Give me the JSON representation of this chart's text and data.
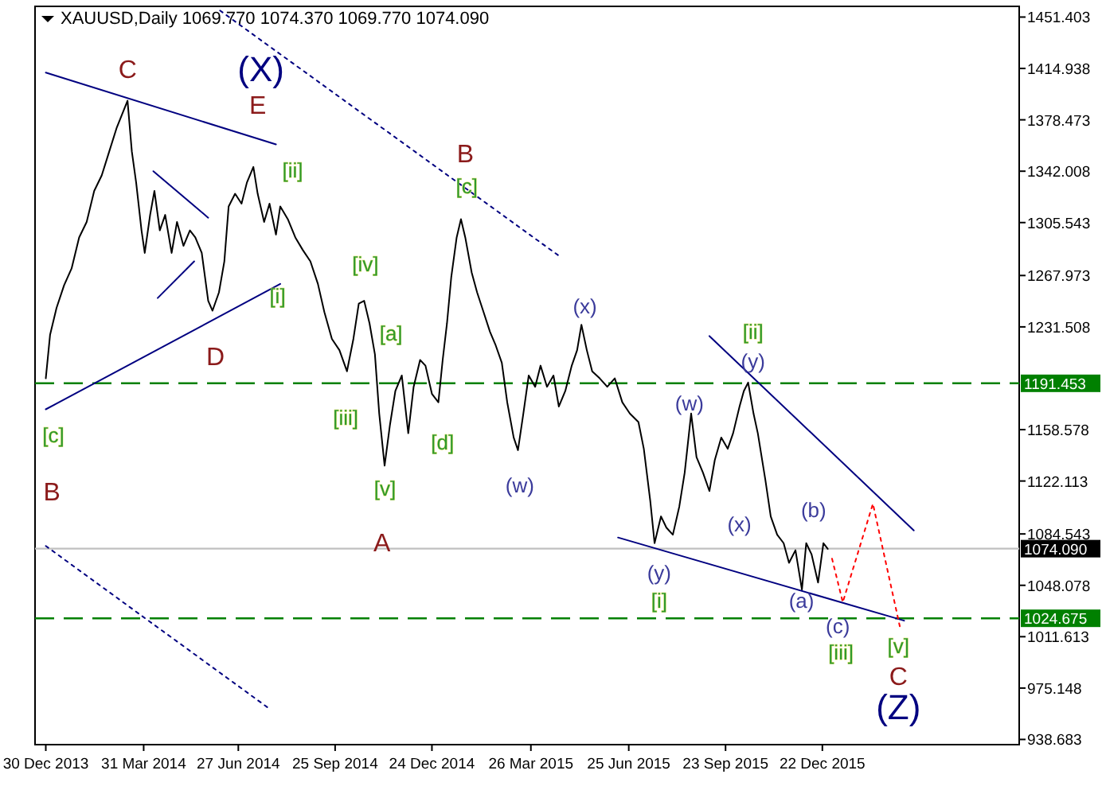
{
  "chart_data": {
    "type": "line",
    "title": "XAUUSD,Daily 1069.770 1074.370 1069.770 1074.090",
    "xlim": [
      "2013-12-20",
      "2016-06-22"
    ],
    "ylim": [
      935,
      1459
    ],
    "xticks": [
      {
        "value": "2013-12-30",
        "label": "30 Dec 2013"
      },
      {
        "value": "2014-03-31",
        "label": "31 Mar 2014"
      },
      {
        "value": "2014-06-27",
        "label": "27 Jun 2014"
      },
      {
        "value": "2014-09-25",
        "label": "25 Sep 2014"
      },
      {
        "value": "2014-12-24",
        "label": "24 Dec 2014"
      },
      {
        "value": "2015-03-26",
        "label": "26 Mar 2015"
      },
      {
        "value": "2015-06-25",
        "label": "25 Jun 2015"
      },
      {
        "value": "2015-09-23",
        "label": "23 Sep 2015"
      },
      {
        "value": "2015-12-22",
        "label": "22 Dec 2015"
      }
    ],
    "yticks": [
      938.683,
      975.148,
      1011.613,
      1048.078,
      1084.543,
      1122.113,
      1158.578,
      1231.508,
      1267.973,
      1305.543,
      1342.008,
      1378.473,
      1414.938,
      1451.403
    ],
    "grid": false,
    "series": [
      {
        "color": "#000000",
        "x": [
          "2013-12-30",
          "2014-01-03",
          "2014-01-09",
          "2014-01-16",
          "2014-01-23",
          "2014-01-30",
          "2014-02-06",
          "2014-02-13",
          "2014-02-20",
          "2014-02-27",
          "2014-03-06",
          "2014-03-16",
          "2014-03-20",
          "2014-03-24",
          "2014-03-29",
          "2014-04-01",
          "2014-04-06",
          "2014-04-10",
          "2014-04-15",
          "2014-04-20",
          "2014-04-26",
          "2014-05-01",
          "2014-05-07",
          "2014-05-13",
          "2014-05-18",
          "2014-05-24",
          "2014-05-30",
          "2014-06-03",
          "2014-06-09",
          "2014-06-14",
          "2014-06-18",
          "2014-06-24",
          "2014-06-30",
          "2014-07-05",
          "2014-07-11",
          "2014-07-15",
          "2014-07-21",
          "2014-07-26",
          "2014-08-01",
          "2014-08-05",
          "2014-08-12",
          "2014-08-19",
          "2014-08-26",
          "2014-09-02",
          "2014-09-09",
          "2014-09-15",
          "2014-09-22",
          "2014-09-29",
          "2014-10-06",
          "2014-10-12",
          "2014-10-17",
          "2014-10-22",
          "2014-10-27",
          "2014-11-01",
          "2014-11-05",
          "2014-11-10",
          "2014-11-15",
          "2014-11-20",
          "2014-11-26",
          "2014-12-02",
          "2014-12-07",
          "2014-12-13",
          "2014-12-18",
          "2014-12-24",
          "2014-12-30",
          "2015-01-03",
          "2015-01-07",
          "2015-01-11",
          "2015-01-16",
          "2015-01-20",
          "2015-01-24",
          "2015-01-30",
          "2015-02-04",
          "2015-02-10",
          "2015-02-16",
          "2015-02-21",
          "2015-02-27",
          "2015-03-04",
          "2015-03-10",
          "2015-03-14",
          "2015-03-19",
          "2015-03-24",
          "2015-03-30",
          "2015-04-04",
          "2015-04-10",
          "2015-04-16",
          "2015-04-21",
          "2015-04-27",
          "2015-05-03",
          "2015-05-08",
          "2015-05-12",
          "2015-05-17",
          "2015-05-22",
          "2015-05-29",
          "2015-06-05",
          "2015-06-12",
          "2015-06-19",
          "2015-06-26",
          "2015-07-04",
          "2015-07-09",
          "2015-07-15",
          "2015-07-19",
          "2015-07-25",
          "2015-07-30",
          "2015-08-05",
          "2015-08-11",
          "2015-08-16",
          "2015-08-22",
          "2015-08-27",
          "2015-09-02",
          "2015-09-08",
          "2015-09-13",
          "2015-09-19",
          "2015-09-25",
          "2015-09-30",
          "2015-10-06",
          "2015-10-10",
          "2015-10-14",
          "2015-10-19",
          "2015-10-23",
          "2015-10-30",
          "2015-11-04",
          "2015-11-10",
          "2015-11-16",
          "2015-11-21",
          "2015-11-27",
          "2015-12-03",
          "2015-12-07",
          "2015-12-12",
          "2015-12-18",
          "2015-12-23",
          "2015-12-27"
        ],
        "values": [
          1195,
          1226,
          1245,
          1261,
          1273,
          1295,
          1306,
          1328,
          1339,
          1356,
          1373,
          1392,
          1356,
          1334,
          1300,
          1284,
          1311,
          1328,
          1300,
          1311,
          1284,
          1306,
          1289,
          1300,
          1295,
          1284,
          1250,
          1243,
          1256,
          1278,
          1317,
          1326,
          1319,
          1334,
          1345,
          1326,
          1306,
          1319,
          1297,
          1317,
          1308,
          1295,
          1286,
          1278,
          1262,
          1242,
          1223,
          1215,
          1200,
          1223,
          1248,
          1250,
          1234,
          1212,
          1170,
          1133,
          1162,
          1186,
          1197,
          1156,
          1189,
          1208,
          1204,
          1184,
          1178,
          1208,
          1234,
          1267,
          1295,
          1308,
          1295,
          1270,
          1256,
          1242,
          1228,
          1219,
          1206,
          1178,
          1153,
          1144,
          1170,
          1197,
          1189,
          1204,
          1189,
          1197,
          1175,
          1186,
          1204,
          1215,
          1233,
          1215,
          1200,
          1195,
          1189,
          1195,
          1178,
          1170,
          1164,
          1145,
          1108,
          1078,
          1097,
          1089,
          1084,
          1104,
          1128,
          1170,
          1139,
          1128,
          1115,
          1137,
          1153,
          1145,
          1156,
          1175,
          1186,
          1192,
          1170,
          1156,
          1123,
          1097,
          1084,
          1078,
          1064,
          1073,
          1045,
          1078,
          1070,
          1050,
          1078,
          1074
        ]
      },
      {
        "color": "#000080",
        "x": [
          "2013-12-30",
          "2014-08-01"
        ],
        "values": [
          1412,
          1361
        ]
      },
      {
        "color": "#000080",
        "x": [
          "2013-12-30",
          "2014-08-05"
        ],
        "values": [
          1173,
          1262
        ]
      },
      {
        "color": "#000080",
        "x": [
          "2014-04-09",
          "2014-05-30"
        ],
        "values": [
          1342,
          1309
        ]
      },
      {
        "color": "#000080",
        "x": [
          "2014-04-13",
          "2014-05-17"
        ],
        "values": [
          1252,
          1278
        ]
      },
      {
        "color": "#000080",
        "line_style": "dotted",
        "x": [
          "2014-06-10",
          "2015-04-21"
        ],
        "values": [
          1456,
          1282
        ]
      },
      {
        "color": "#000080",
        "line_style": "dotted",
        "x": [
          "2013-12-30",
          "2014-07-25"
        ],
        "values": [
          1076,
          961
        ]
      },
      {
        "color": "#000080",
        "x": [
          "2015-09-08",
          "2016-03-16"
        ],
        "values": [
          1225,
          1087
        ]
      },
      {
        "color": "#000080",
        "x": [
          "2015-06-15",
          "2016-03-07"
        ],
        "values": [
          1082,
          1023
        ]
      },
      {
        "color": "#ff0000",
        "line_style": "dotted",
        "x": [
          "2015-12-31",
          "2016-01-10",
          "2016-02-07",
          "2016-03-03"
        ],
        "values": [
          1067,
          1036,
          1106,
          1019
        ]
      }
    ],
    "ref_lines": [
      {
        "axis": "y",
        "value": 1191.453,
        "label": "1191.453",
        "color": "#008000",
        "line_style": "dashed"
      },
      {
        "axis": "y",
        "value": 1024.675,
        "label": "1024.675",
        "color": "#008000",
        "line_style": "dashed"
      },
      {
        "axis": "y",
        "value": 1074.09,
        "label": "1074.090",
        "color": "#c0c0c0",
        "line_style": "solid"
      }
    ],
    "annotations": [
      "C",
      "(X)",
      "E",
      "[ii]",
      "D",
      "[i]",
      "B",
      "[c]",
      "[iv]",
      "[a]",
      "[iii]",
      "[d]",
      "[v]",
      "(w)",
      "A",
      "[c]",
      "B",
      "(x)",
      "[ii]",
      "(y)",
      "(w)",
      "(x)",
      "(b)",
      "(y)",
      "[i]",
      "(a)",
      "(c)",
      "[iii]",
      "[v]",
      "C",
      "(Z)"
    ]
  }
}
